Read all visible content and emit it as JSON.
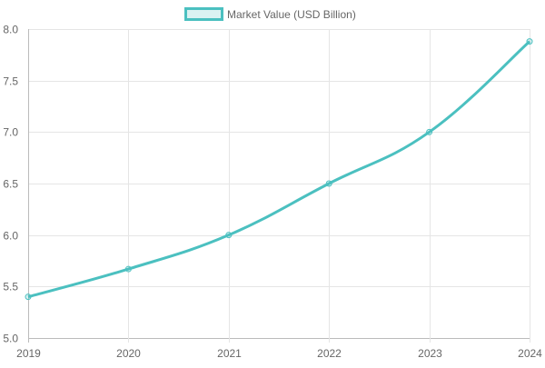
{
  "chart_data": {
    "type": "line",
    "title": "",
    "xlabel": "",
    "ylabel": "",
    "categories": [
      "2019",
      "2020",
      "2021",
      "2022",
      "2023",
      "2024"
    ],
    "series": [
      {
        "name": "Market Value (USD Billion)",
        "values": [
          5.4,
          5.67,
          6.0,
          6.5,
          7.0,
          7.88
        ],
        "color": "#4bc0c0"
      }
    ],
    "ylim": [
      5.0,
      8.0
    ],
    "yticks": [
      "5.0",
      "5.5",
      "6.0",
      "6.5",
      "7.0",
      "7.5",
      "8.0"
    ],
    "grid": true,
    "legend": "top"
  }
}
